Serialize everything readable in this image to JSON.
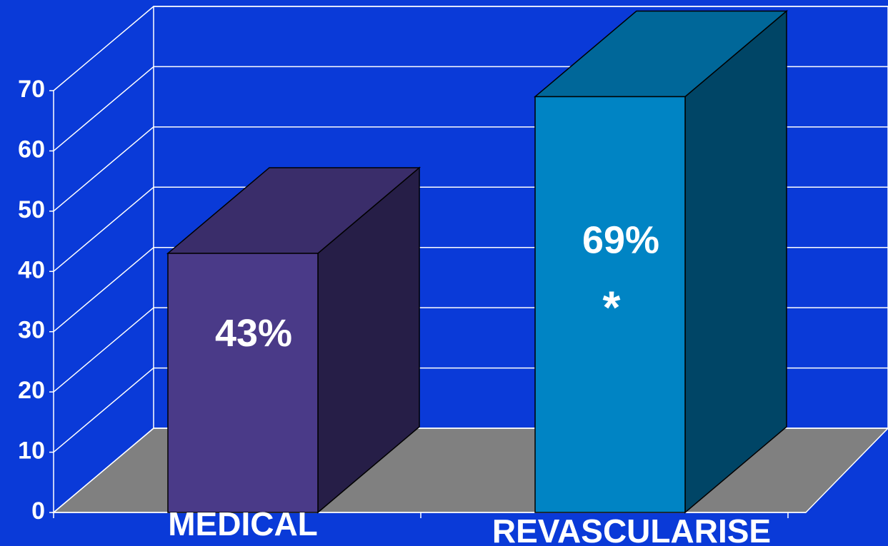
{
  "chart_data": {
    "type": "bar3d",
    "categories": [
      "MEDICAL",
      "REVASCULARISE"
    ],
    "values": [
      43,
      69
    ],
    "value_labels": [
      "43%",
      "69%"
    ],
    "annotations": [
      {
        "text": "*",
        "category": 1
      }
    ],
    "colors": [
      "#4a3a88",
      "#0084c4"
    ],
    "ylim": [
      0,
      70
    ],
    "yticks": [
      0,
      10,
      20,
      30,
      40,
      50,
      60,
      70
    ],
    "grid": true
  }
}
